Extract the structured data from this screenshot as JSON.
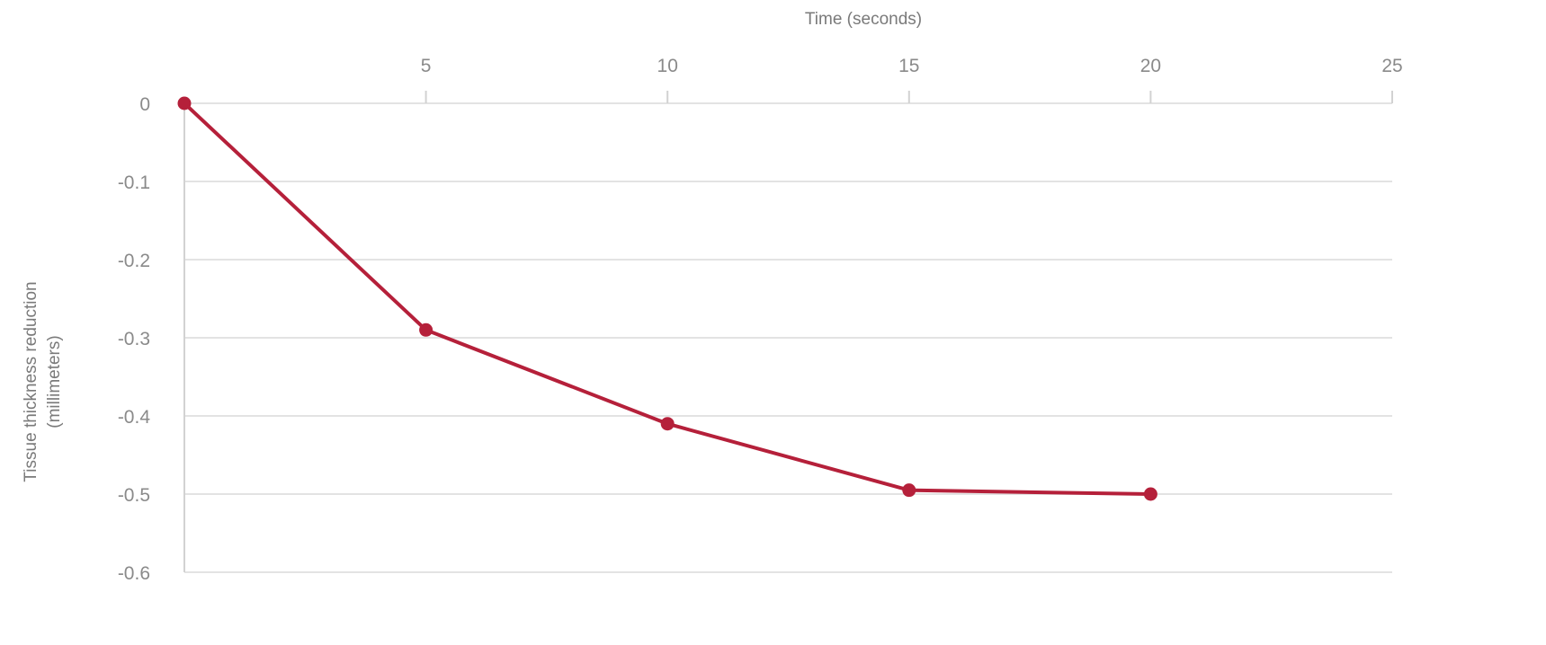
{
  "chart_data": {
    "type": "line",
    "xlabel": "Time (seconds)",
    "ylabel_lines": [
      "Tissue thickness reduction",
      "(millimeters)"
    ],
    "xlim": [
      0,
      25
    ],
    "ylim": [
      -0.6,
      0
    ],
    "xticks": [
      5,
      10,
      15,
      20,
      25
    ],
    "xtick_labels": [
      "5",
      "10",
      "15",
      "20",
      "25"
    ],
    "yticks": [
      0,
      -0.1,
      -0.2,
      -0.3,
      -0.4,
      -0.5,
      -0.6
    ],
    "ytick_labels": [
      "0",
      "-0.1",
      "-0.2",
      "-0.3",
      "-0.4",
      "-0.5",
      "-0.6"
    ],
    "grid": true,
    "x_axis_position": "top",
    "series": [
      {
        "x": [
          0,
          5,
          10,
          15,
          20
        ],
        "y": [
          0,
          -0.29,
          -0.41,
          -0.495,
          -0.5
        ],
        "color": "#b5203a"
      }
    ]
  }
}
